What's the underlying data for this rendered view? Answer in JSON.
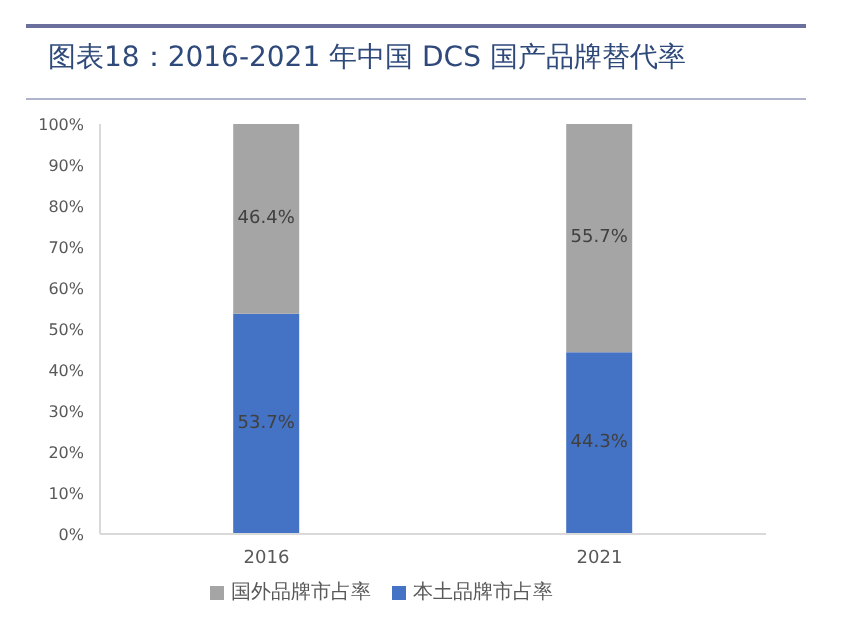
{
  "chart_data": {
    "type": "bar",
    "title": "图表18：2016-2021 年中国 DCS 国产品牌替代率",
    "categories": [
      "2016",
      "2021"
    ],
    "stacked": true,
    "series": [
      {
        "name": "本土品牌市占率",
        "color": "#4472c4",
        "values": [
          53.7,
          44.3
        ],
        "value_labels": [
          "53.7%",
          "44.3%"
        ]
      },
      {
        "name": "国外品牌市占率",
        "color": "#a5a5a5",
        "values": [
          46.4,
          55.7
        ],
        "value_labels": [
          "46.4%",
          "55.7%"
        ]
      }
    ],
    "ylim": [
      0,
      100
    ],
    "yticks": [
      {
        "value": 0,
        "label": "0%"
      },
      {
        "value": 10,
        "label": "10%"
      },
      {
        "value": 20,
        "label": "20%"
      },
      {
        "value": 30,
        "label": "30%"
      },
      {
        "value": 40,
        "label": "40%"
      },
      {
        "value": 50,
        "label": "50%"
      },
      {
        "value": 60,
        "label": "60%"
      },
      {
        "value": 70,
        "label": "70%"
      },
      {
        "value": 80,
        "label": "80%"
      },
      {
        "value": 90,
        "label": "90%"
      },
      {
        "value": 100,
        "label": "100%"
      }
    ],
    "grid": false,
    "legend": "bottom"
  }
}
